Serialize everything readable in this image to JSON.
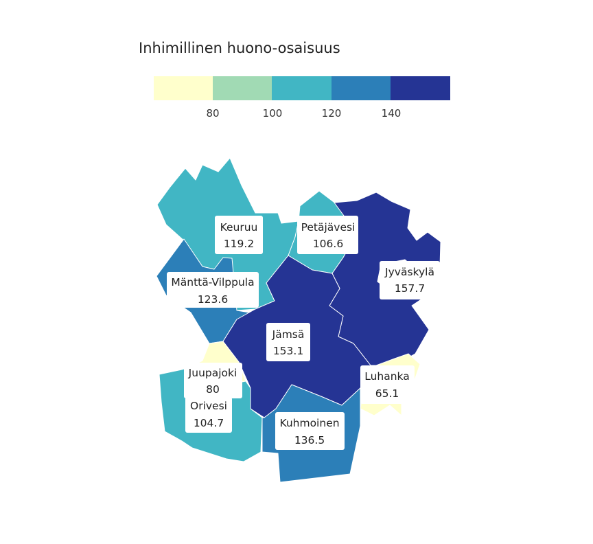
{
  "legend": {
    "title": "Inhimillinen huono-osaisuus",
    "breaks": [
      "80",
      "100",
      "120",
      "140"
    ],
    "colors": [
      "#ffffcc",
      "#a1dab4",
      "#41b6c4",
      "#2c7fb8",
      "#253494"
    ]
  },
  "map": {
    "type": "choropleth",
    "regions": [
      {
        "name": "Keuruu",
        "value": "119.2",
        "color": "#41b6c4"
      },
      {
        "name": "Petäjävesi",
        "value": "106.6",
        "color": "#41b6c4"
      },
      {
        "name": "Jyväskylä",
        "value": "157.7",
        "color": "#253494"
      },
      {
        "name": "Mänttä-Vilppula",
        "value": "123.6",
        "color": "#2c7fb8"
      },
      {
        "name": "Jämsä",
        "value": "153.1",
        "color": "#253494"
      },
      {
        "name": "Juupajoki",
        "value": "80",
        "color": "#ffffcc"
      },
      {
        "name": "Luhanka",
        "value": "65.1",
        "color": "#ffffcc"
      },
      {
        "name": "Orivesi",
        "value": "104.7",
        "color": "#41b6c4"
      },
      {
        "name": "Kuhmoinen",
        "value": "136.5",
        "color": "#2c7fb8"
      }
    ]
  }
}
